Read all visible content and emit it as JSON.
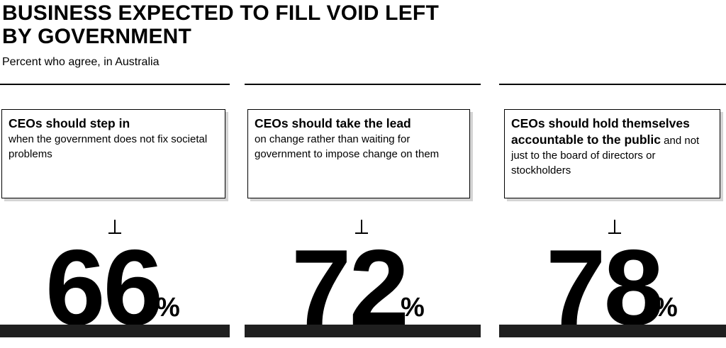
{
  "chart_data": {
    "type": "table",
    "title": "BUSINESS EXPECTED TO FILL VOID LEFT BY GOVERNMENT",
    "subtitle": "Percent who agree, in Australia",
    "unit": "%",
    "items": [
      {
        "bold_text": "CEOs should step in",
        "text": "when the government does not fix societal problems",
        "value": 66
      },
      {
        "bold_text": "CEOs should take the lead",
        "text": "on change rather than waiting for government to impose change on them",
        "value": 72
      },
      {
        "bold_text": "CEOs should hold themselves accountable to the public",
        "text": "and not just to the board of directors or stockholders",
        "value": 78
      }
    ]
  }
}
